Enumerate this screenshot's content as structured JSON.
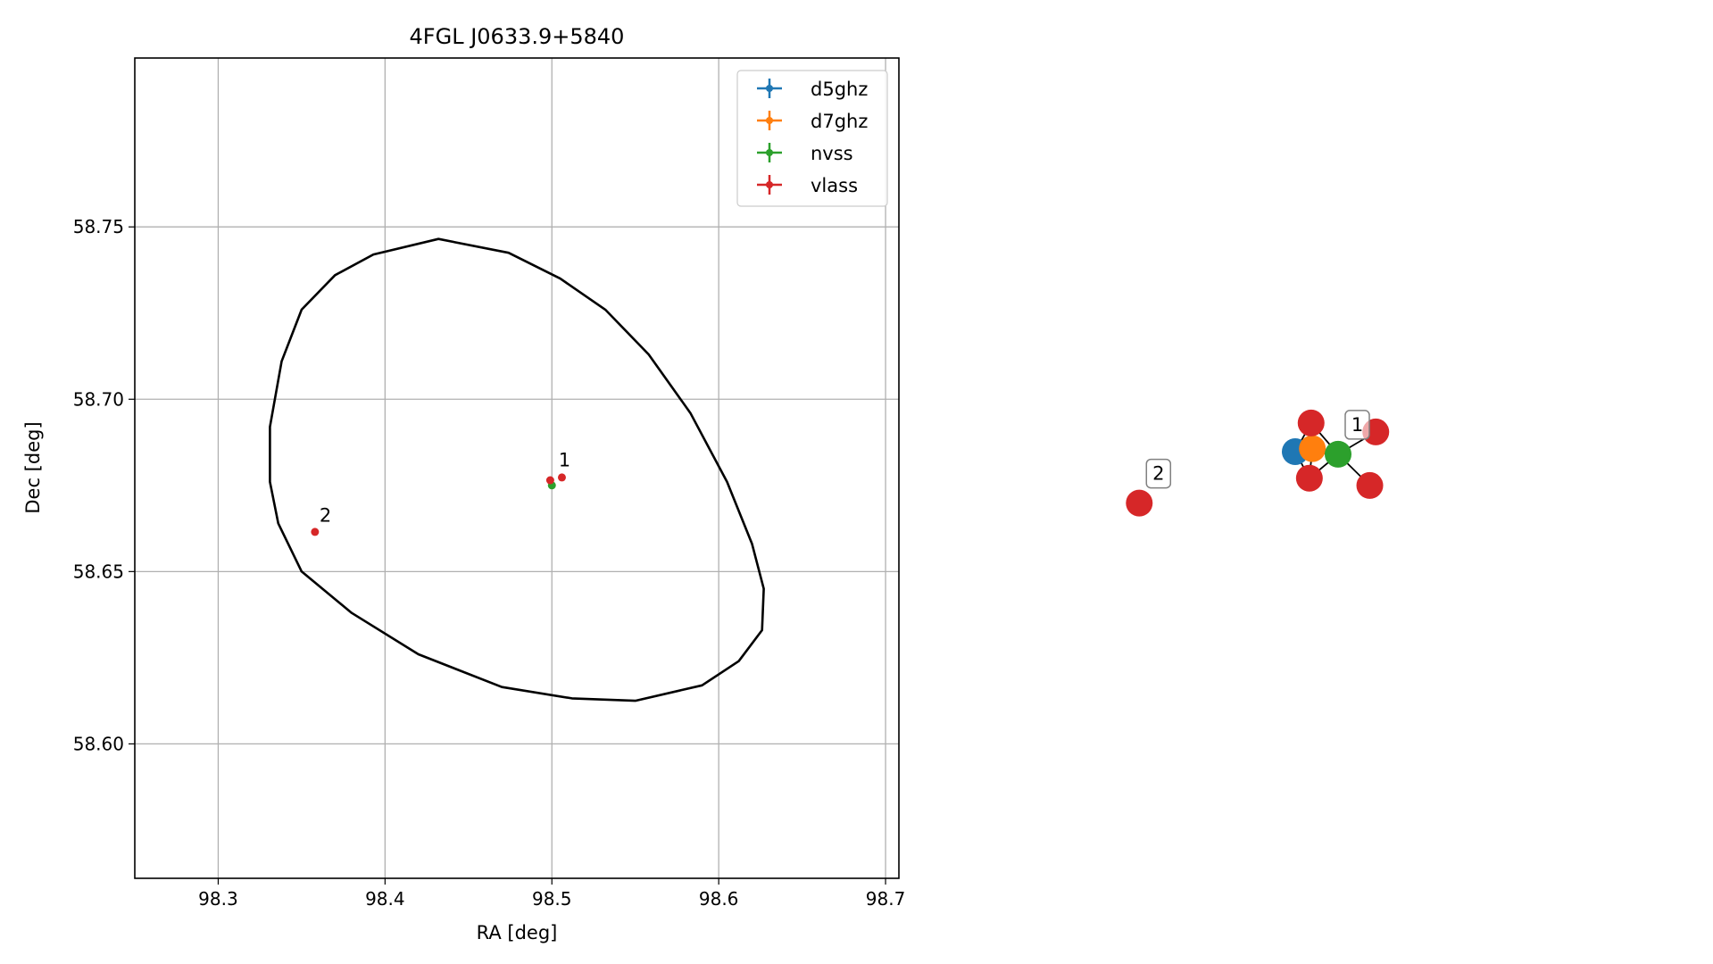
{
  "chart_data": [
    {
      "type": "scatter",
      "title": "4FGL J0633.9+5840",
      "xlabel": "RA [deg]",
      "ylabel": "Dec [deg]",
      "xlim": [
        98.25,
        98.708
      ],
      "ylim": [
        58.561,
        58.799
      ],
      "xticks": [
        98.3,
        98.4,
        98.5,
        98.6,
        98.7
      ],
      "xtick_labels": [
        "98.3",
        "98.4",
        "98.5",
        "98.6",
        "98.7"
      ],
      "yticks": [
        58.6,
        58.65,
        58.7,
        58.75
      ],
      "ytick_labels": [
        "58.60",
        "58.65",
        "58.70",
        "58.75"
      ],
      "grid": true,
      "legend_placement": "top-right",
      "series": [
        {
          "name": "d5ghz",
          "color": "#1f77b4",
          "points": []
        },
        {
          "name": "d7ghz",
          "color": "#ff7f0e",
          "points": []
        },
        {
          "name": "nvss",
          "color": "#2ca02c",
          "points": [
            {
              "x": 98.5,
              "y": 58.675
            }
          ]
        },
        {
          "name": "vlass",
          "color": "#d62728",
          "points": [
            {
              "x": 98.499,
              "y": 58.6765
            },
            {
              "x": 98.506,
              "y": 58.6773
            },
            {
              "x": 98.358,
              "y": 58.6615
            }
          ]
        }
      ],
      "annotations": [
        {
          "text": "1",
          "x": 98.504,
          "y": 58.6805
        },
        {
          "text": "2",
          "x": 98.3607,
          "y": 58.6645
        }
      ],
      "ellipse": {
        "color": "#000000",
        "points": [
          [
            98.432,
            58.7465
          ],
          [
            98.474,
            58.7425
          ],
          [
            98.505,
            58.735
          ],
          [
            98.532,
            58.726
          ],
          [
            98.558,
            58.713
          ],
          [
            98.583,
            58.696
          ],
          [
            98.605,
            58.676
          ],
          [
            98.62,
            58.658
          ],
          [
            98.627,
            58.645
          ],
          [
            98.626,
            58.633
          ],
          [
            98.612,
            58.624
          ],
          [
            98.59,
            58.617
          ],
          [
            98.55,
            58.6125
          ],
          [
            98.512,
            58.6132
          ],
          [
            98.47,
            58.6165
          ],
          [
            98.42,
            58.626
          ],
          [
            98.38,
            58.638
          ],
          [
            98.35,
            58.65
          ],
          [
            98.336,
            58.664
          ],
          [
            98.331,
            58.676
          ],
          [
            98.331,
            58.692
          ],
          [
            98.338,
            58.711
          ],
          [
            98.35,
            58.726
          ],
          [
            98.37,
            58.736
          ],
          [
            98.393,
            58.742
          ]
        ]
      }
    },
    {
      "type": "network",
      "nodes": [
        {
          "id": "d5ghz",
          "color": "#1f77b4",
          "x": 0,
          "y": 0
        },
        {
          "id": "d7ghz",
          "color": "#ff7f0e",
          "x": 0.4,
          "y": 0.07
        },
        {
          "id": "nvss",
          "color": "#2ca02c",
          "x": 1.0,
          "y": -0.06,
          "label": "1"
        },
        {
          "id": "vlass_top",
          "color": "#d62728",
          "x": 0.37,
          "y": 0.67
        },
        {
          "id": "vlass_bottom",
          "color": "#d62728",
          "x": 0.33,
          "y": -0.62
        },
        {
          "id": "vlass_right_top",
          "color": "#d62728",
          "x": 1.88,
          "y": 0.46
        },
        {
          "id": "vlass_right_bottom",
          "color": "#d62728",
          "x": 1.74,
          "y": -0.79
        },
        {
          "id": "vlass_far",
          "color": "#d62728",
          "x": -3.64,
          "y": -1.2,
          "label": "2"
        }
      ],
      "edges": [
        [
          "d5ghz",
          "d7ghz"
        ],
        [
          "d5ghz",
          "nvss"
        ],
        [
          "d5ghz",
          "vlass_top"
        ],
        [
          "d5ghz",
          "vlass_bottom"
        ],
        [
          "d7ghz",
          "nvss"
        ],
        [
          "d7ghz",
          "vlass_top"
        ],
        [
          "d7ghz",
          "vlass_bottom"
        ],
        [
          "nvss",
          "vlass_top"
        ],
        [
          "nvss",
          "vlass_bottom"
        ],
        [
          "nvss",
          "vlass_right_top"
        ],
        [
          "nvss",
          "vlass_right_bottom"
        ]
      ]
    }
  ]
}
